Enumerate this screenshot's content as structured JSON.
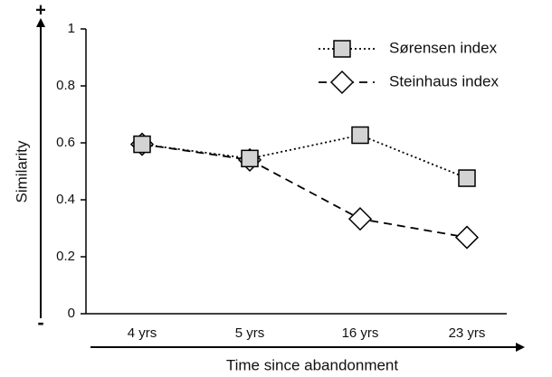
{
  "chart_data": {
    "type": "line",
    "y_label": "Similarity",
    "x_label": "Time since abandonment",
    "y_axis_top_sign": "+",
    "y_axis_bottom_sign": "-",
    "categories": [
      "4 yrs",
      "5 yrs",
      "16 yrs",
      "23 yrs"
    ],
    "series": [
      {
        "name": "Sørensen index",
        "color": "#000000",
        "line_style": "dotted",
        "marker": "square",
        "marker_fill": "#d3d3d3",
        "values": [
          0.595,
          0.545,
          0.627,
          0.476
        ]
      },
      {
        "name": "Steinhaus index",
        "color": "#000000",
        "line_style": "dashed",
        "marker": "diamond",
        "marker_fill": "#ffffff",
        "values": [
          0.595,
          0.54,
          0.333,
          0.268
        ]
      }
    ],
    "ylim": [
      0,
      1
    ],
    "yticks": [
      0,
      0.2,
      0.4,
      0.6,
      0.8,
      1
    ],
    "legend": "upper right",
    "grid": false
  }
}
